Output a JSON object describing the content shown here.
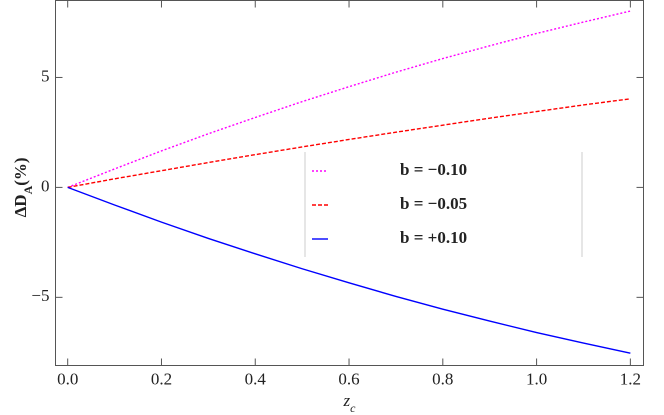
{
  "chart_data": {
    "type": "line",
    "xlabel": "z_c",
    "ylabel": "ΔD_A(%)",
    "x": [
      0,
      0.1,
      0.2,
      0.3,
      0.4,
      0.5,
      0.6,
      0.7,
      0.8,
      0.9,
      1.0,
      1.1,
      1.2
    ],
    "series": [
      {
        "name": "b = −0.10",
        "color": "#ff00ff",
        "style": "dotted",
        "values": [
          0,
          0.84,
          1.66,
          2.44,
          3.18,
          3.9,
          4.58,
          5.24,
          5.86,
          6.44,
          7.0,
          7.52,
          8.02
        ]
      },
      {
        "name": "b = −0.05",
        "color": "#ff0000",
        "style": "dashed",
        "values": [
          0,
          0.39,
          0.76,
          1.13,
          1.49,
          1.84,
          2.18,
          2.51,
          2.83,
          3.15,
          3.45,
          3.75,
          4.03
        ]
      },
      {
        "name": "b = +0.10",
        "color": "#0000ff",
        "style": "solid",
        "values": [
          0,
          -0.8,
          -1.58,
          -2.32,
          -3.02,
          -3.7,
          -4.34,
          -4.96,
          -5.54,
          -6.08,
          -6.6,
          -7.08,
          -7.54
        ]
      }
    ],
    "xlim": [
      -0.026,
      1.228
    ],
    "ylim": [
      -8.1,
      8.5
    ],
    "xticks": [
      {
        "value": 0,
        "label": "0.0"
      },
      0.2,
      0.4,
      0.6,
      0.8,
      {
        "value": 1,
        "label": "1.0"
      },
      1.2
    ],
    "yticks": [
      {
        "value": -5,
        "label": "−5"
      },
      0,
      5
    ],
    "legend": "center-right"
  }
}
